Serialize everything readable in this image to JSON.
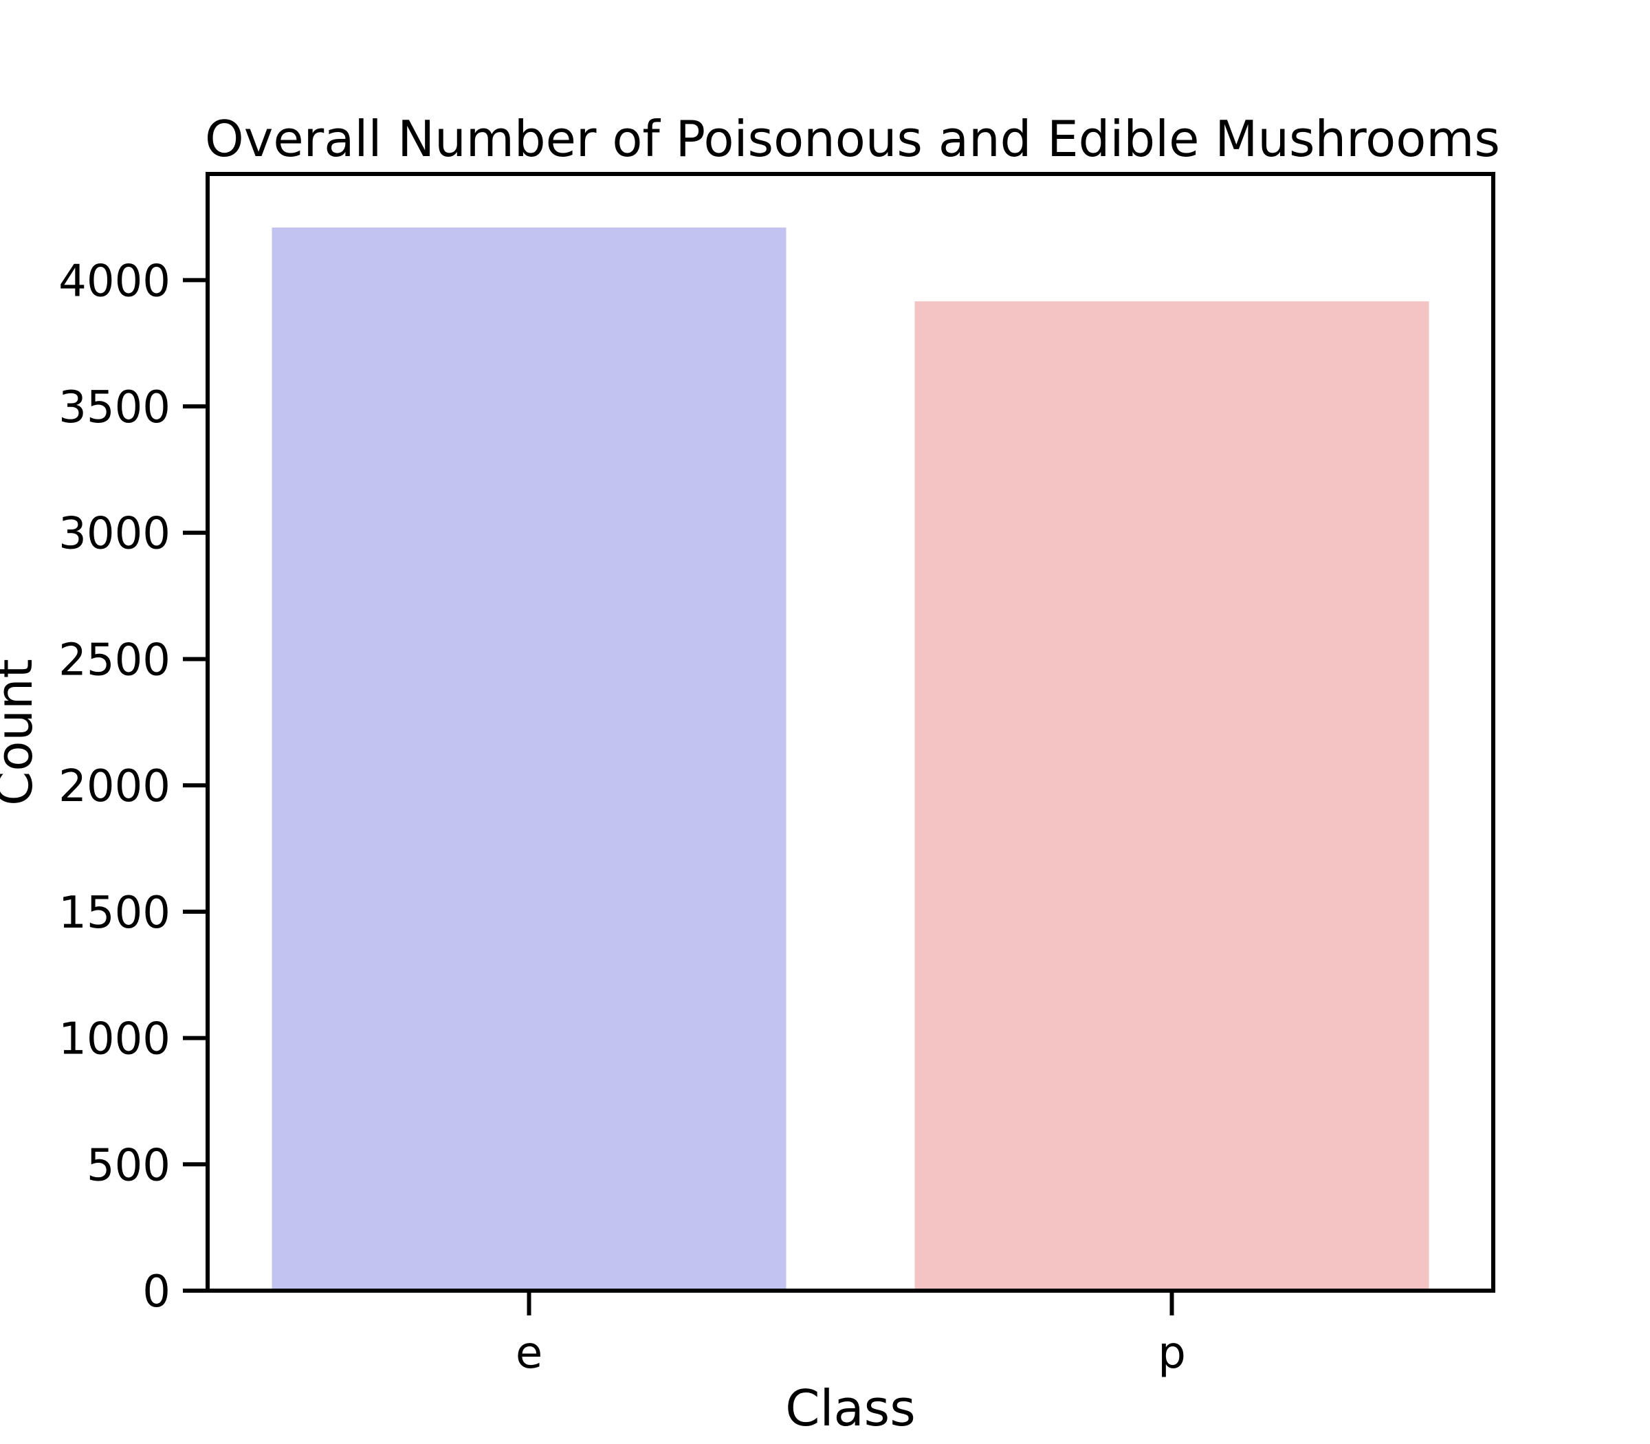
{
  "chart_data": {
    "type": "bar",
    "title": "Overall Number of Poisonous and Edible Mushrooms",
    "xlabel": "Class",
    "ylabel": "Count",
    "categories": [
      "e",
      "p"
    ],
    "values": [
      4208,
      3916
    ],
    "colors": [
      "#c3c3f2",
      "#f4c3c3"
    ],
    "ylim": [
      0,
      4420
    ],
    "yticks": [
      0,
      500,
      1000,
      1500,
      2000,
      2500,
      3000,
      3500,
      4000
    ],
    "grid": false,
    "legend": "none"
  }
}
